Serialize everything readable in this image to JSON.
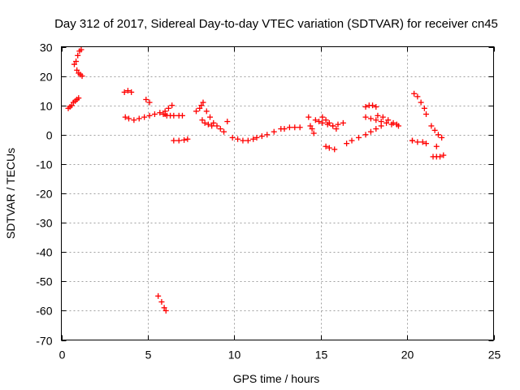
{
  "chart_data": {
    "type": "scatter",
    "title": "Day 312 of 2017, Sidereal Day-to-day VTEC variation (SDTVAR) for receiver cn45",
    "xlabel": "GPS time / hours",
    "ylabel": "SDTVAR / TECUs",
    "xlim": [
      0,
      25
    ],
    "ylim": [
      -70,
      30
    ],
    "xticks": [
      "0",
      "5",
      "10",
      "15",
      "20",
      "25"
    ],
    "yticks": [
      "30",
      "20",
      "10",
      "0",
      "-10",
      "-20",
      "-30",
      "-40",
      "-50",
      "-60",
      "-70"
    ],
    "grid": true,
    "marker": "plus",
    "color": "#ff0000",
    "series": [
      {
        "name": "SDTVAR",
        "x": [
          0.4,
          0.5,
          0.6,
          0.7,
          0.8,
          0.9,
          1.0,
          0.75,
          0.85,
          0.95,
          1.05,
          1.15,
          0.9,
          1.0,
          1.1,
          1.2,
          3.7,
          3.9,
          4.2,
          4.5,
          4.8,
          5.1,
          5.4,
          5.7,
          6.0,
          3.65,
          3.85,
          4.05,
          4.9,
          5.1,
          5.6,
          5.8,
          5.95,
          6.05,
          5.9,
          6.1,
          6.3,
          6.5,
          6.8,
          7.0,
          6.0,
          6.2,
          6.4,
          6.5,
          6.8,
          7.1,
          7.3,
          7.8,
          8.0,
          8.1,
          8.2,
          8.4,
          8.6,
          8.8,
          9.0,
          9.2,
          9.4,
          8.15,
          8.3,
          8.5,
          8.7,
          9.6,
          9.9,
          10.2,
          10.5,
          10.8,
          11.1,
          11.3,
          11.6,
          11.9,
          12.3,
          12.7,
          12.9,
          13.2,
          13.5,
          13.8,
          14.3,
          14.4,
          14.5,
          14.6,
          14.7,
          14.9,
          15.1,
          15.4,
          15.7,
          16.0,
          16.3,
          15.1,
          15.3,
          15.5,
          15.7,
          15.9,
          15.3,
          15.5,
          15.8,
          16.5,
          16.8,
          17.2,
          17.6,
          17.9,
          18.2,
          18.5,
          17.6,
          17.8,
          18.0,
          18.2,
          17.6,
          17.9,
          18.2,
          18.5,
          18.8,
          19.1,
          19.4,
          18.3,
          18.6,
          18.9,
          19.2,
          19.5,
          20.3,
          20.4,
          20.6,
          20.8,
          21.0,
          21.1,
          20.3,
          20.6,
          20.9,
          21.1,
          21.4,
          21.6,
          21.8,
          22.0,
          21.5,
          21.7,
          21.9,
          22.1,
          21.7
        ],
        "y": [
          9,
          9.5,
          10,
          11,
          11.5,
          12,
          12.5,
          24,
          25,
          27,
          28.5,
          29,
          22,
          21,
          20.5,
          20,
          6,
          5.5,
          5,
          5.5,
          6,
          6.5,
          7,
          7.5,
          7,
          14.5,
          15,
          14.5,
          12,
          11,
          -55,
          -57,
          -59,
          -60,
          7,
          6.5,
          6.5,
          6.5,
          6.5,
          6.5,
          8,
          9,
          10,
          -2,
          -2,
          -1.8,
          -1.5,
          8,
          9,
          10,
          11,
          8,
          6,
          4,
          3,
          2,
          1,
          5,
          4,
          3.5,
          3,
          4.5,
          -1,
          -1.5,
          -2,
          -2,
          -1.5,
          -1,
          -0.5,
          0,
          1,
          2,
          2,
          2.5,
          2.5,
          2.5,
          6,
          3,
          2,
          0.5,
          5,
          4.5,
          4,
          3.5,
          3,
          3.5,
          4,
          6,
          5,
          4,
          3,
          2,
          -4,
          -4.5,
          -5,
          -3,
          -2,
          -1,
          0,
          1,
          2,
          3,
          9.5,
          10,
          10,
          9.5,
          6,
          5.5,
          5,
          4.5,
          4,
          3.5,
          3.5,
          6.5,
          6,
          5,
          4,
          3,
          -2,
          14,
          13,
          11,
          9,
          7,
          -2,
          -2.5,
          -2.5,
          -3,
          3,
          1.5,
          0,
          -1,
          -7.5,
          -7.5,
          -7.5,
          -7,
          -4
        ]
      }
    ]
  }
}
